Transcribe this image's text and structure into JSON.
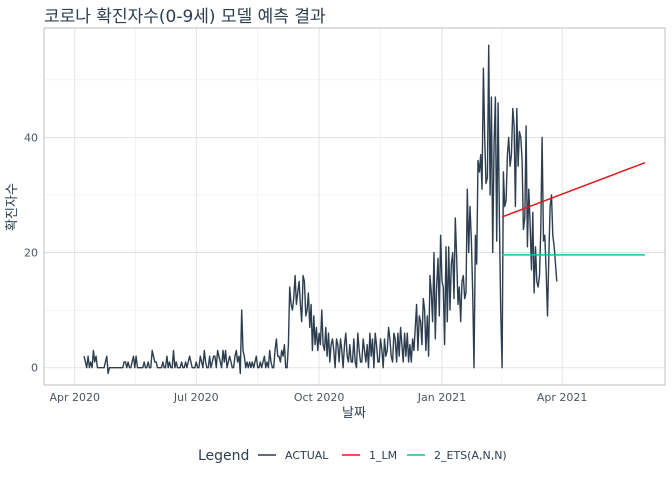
{
  "chart_data": {
    "type": "line",
    "title": "코로나 확진자수(0-9세) 모델 예측 결과",
    "xlabel": "날짜",
    "ylabel": "확진자수",
    "x_ticks": [
      "Apr 2020",
      "Jul 2020",
      "Oct 2020",
      "Jan 2021",
      "Apr 2021"
    ],
    "y_ticks": [
      0,
      20,
      40
    ],
    "xlim_days": [
      -23,
      442
    ],
    "ylim": [
      -3,
      59
    ],
    "tick_days": [
      0,
      91,
      183,
      275,
      365
    ],
    "legend": {
      "title": "Legend",
      "position": "bottom",
      "entries": [
        {
          "label": "ACTUAL",
          "color": "#2c3e50"
        },
        {
          "label": "1_LM",
          "color": "#e31a1c"
        },
        {
          "label": "2_ETS(A,N,N)",
          "color": "#18bc9c"
        }
      ]
    },
    "series": [
      {
        "name": "ACTUAL",
        "color": "#2c3e50",
        "start_day": 7,
        "values": [
          2,
          1,
          0,
          2,
          0,
          1,
          0,
          3,
          1,
          2,
          0,
          0,
          0,
          0,
          0,
          0,
          1,
          2,
          -1,
          0,
          0,
          0,
          0,
          0,
          0,
          0,
          0,
          0,
          0,
          0,
          1,
          1,
          0,
          1,
          0,
          0,
          1,
          2,
          0,
          2,
          0,
          0,
          0,
          0,
          0,
          1,
          0,
          0,
          1,
          0,
          0,
          3,
          2,
          1,
          1,
          0,
          0,
          0,
          0,
          1,
          0,
          0,
          2,
          0,
          1,
          0,
          0,
          3,
          0,
          1,
          0,
          0,
          0,
          1,
          0,
          0,
          1,
          0,
          1,
          2,
          1,
          0,
          0,
          0,
          1,
          0,
          0,
          2,
          1,
          0,
          3,
          1,
          0,
          0,
          2,
          0,
          1,
          2,
          2,
          0,
          3,
          2,
          1,
          0,
          3,
          1,
          3,
          0,
          1,
          2,
          1,
          0,
          0,
          2,
          3,
          1,
          2,
          -1,
          10,
          3,
          2,
          0,
          1,
          0,
          1,
          0,
          1,
          0,
          1,
          2,
          0,
          0,
          1,
          0,
          1,
          2,
          0,
          1,
          0,
          3,
          1,
          0,
          0,
          3,
          5,
          2,
          2,
          1,
          3,
          2,
          4,
          0,
          0,
          4,
          14,
          11,
          10,
          12,
          16,
          11,
          13,
          15,
          11,
          8,
          16,
          15,
          9,
          10,
          13,
          7,
          11,
          3,
          9,
          4,
          7,
          3,
          6,
          4,
          10,
          4,
          3,
          7,
          2,
          6,
          1,
          4,
          5,
          3,
          0,
          5,
          4,
          1,
          5,
          3,
          0,
          4,
          6,
          2,
          1,
          4,
          1,
          1,
          5,
          1,
          0,
          6,
          3,
          1,
          1,
          5,
          3,
          1,
          4,
          0,
          6,
          2,
          5,
          0,
          6,
          4,
          1,
          1,
          5,
          3,
          0,
          5,
          2,
          3,
          7,
          5,
          2,
          1,
          6,
          5,
          1,
          6,
          2,
          7,
          4,
          1,
          6,
          2,
          6,
          1,
          4,
          1,
          5,
          3,
          7,
          11,
          3,
          9,
          8,
          4,
          12,
          10,
          3,
          9,
          2,
          16,
          13,
          8,
          20,
          5,
          14,
          19,
          9,
          23,
          15,
          14,
          4,
          21,
          8,
          21,
          10,
          18,
          20,
          12,
          26,
          19,
          11,
          14,
          8,
          15,
          16,
          12,
          13,
          31,
          20,
          28,
          22,
          13,
          0,
          23,
          18,
          36,
          34,
          37,
          31,
          52,
          40,
          32,
          33,
          56,
          30,
          47,
          20,
          39,
          47,
          22,
          46,
          26,
          10,
          0,
          34,
          28,
          29,
          37,
          40,
          35,
          37,
          45,
          42,
          28,
          45,
          35,
          41,
          40,
          36,
          24,
          26,
          42,
          21,
          31,
          25,
          17,
          27,
          13,
          21,
          15,
          14,
          16,
          24,
          40,
          22,
          23,
          17,
          9,
          19,
          28,
          30,
          23,
          21,
          18,
          15
        ],
        "dashed": false
      },
      {
        "name": "1_LM",
        "color": "#e31a1c",
        "x_days": [
          320,
          427
        ],
        "values": [
          26.2,
          35.6
        ],
        "dashed": false
      },
      {
        "name": "2_ETS(A,N,N)",
        "color": "#18bc9c",
        "x_days": [
          320,
          427
        ],
        "values": [
          19.6,
          19.6
        ],
        "dashed": false
      }
    ]
  }
}
